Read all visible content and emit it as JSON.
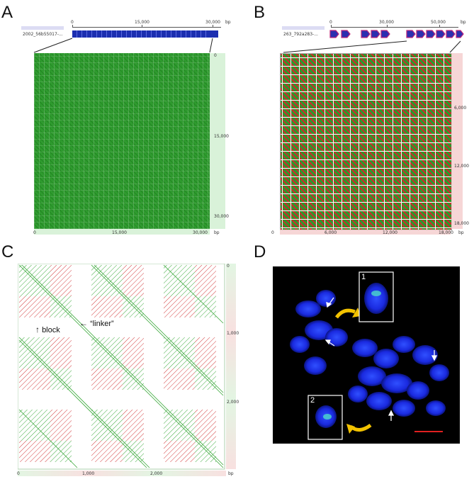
{
  "panels": {
    "A": {
      "letter": "A",
      "seq_name": "2002_56b55017-...",
      "top_ticks": [
        "0",
        "15,000",
        "30,000"
      ],
      "unit": "bp",
      "right_ticks": [
        "0",
        "15,000",
        "30,000"
      ],
      "bottom_ticks": [
        "0",
        "15,000",
        "30,000"
      ],
      "bottom_unit": "bp",
      "colors": {
        "dot": "#1f8a1f",
        "bg": "#2c9a2c",
        "bar": "#1c2fb0"
      }
    },
    "B": {
      "letter": "B",
      "seq_name": "263_792a283-...",
      "top_ticks": [
        "0",
        "30,000",
        "50,000"
      ],
      "unit": "bp",
      "right_ticks": [
        "6,000",
        "12,000",
        "18,000"
      ],
      "bottom_ticks": [
        "0",
        "6,000",
        "12,000",
        "18,000"
      ],
      "bottom_unit": "bp",
      "colors": {
        "green": "#2c9a2c",
        "red": "#cc2b2b",
        "bar": "#2c2fb0",
        "bar_accent": "#c0267a"
      }
    },
    "C": {
      "letter": "C",
      "right_ticks": [
        "0",
        "1,000",
        "2,000"
      ],
      "bottom_ticks": [
        "0",
        "1,000",
        "2,000"
      ],
      "bottom_unit": "bp",
      "annotation_block": "block",
      "annotation_linker": "“linker”",
      "colors": {
        "green": "#3aa83a",
        "red": "#d23c3c"
      }
    },
    "D": {
      "letter": "D",
      "inset_labels": [
        "1",
        "2"
      ],
      "colors": {
        "bg": "#000000",
        "cell": "#1a2ae0",
        "arrow": "#f2c200",
        "scale": "#e02020"
      }
    }
  }
}
